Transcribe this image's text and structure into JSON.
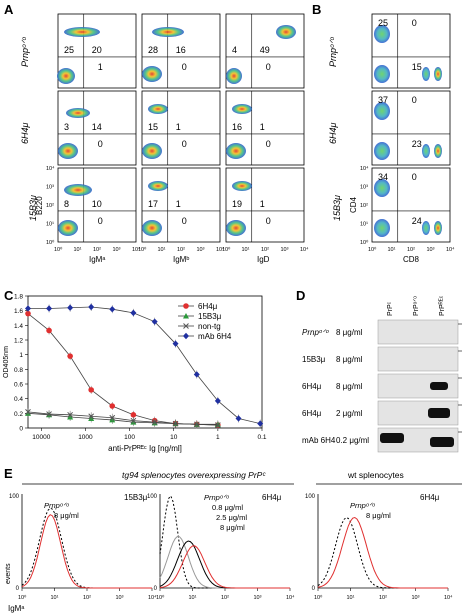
{
  "panel_labels": [
    "A",
    "B",
    "C",
    "D",
    "E"
  ],
  "row_labels": [
    "Prnpᵒᐟᵒ",
    "6H4μ",
    "15B3μ"
  ],
  "panel_a": {
    "ylabel": "B220",
    "xlabels": [
      "IgMᵃ",
      "IgMᵇ",
      "IgD"
    ],
    "quadrants": [
      [
        [
          25,
          20,
          1
        ],
        [
          28,
          16,
          0
        ],
        [
          4,
          49,
          0
        ]
      ],
      [
        [
          3,
          14,
          0
        ],
        [
          15,
          1,
          0
        ],
        [
          16,
          1,
          0
        ]
      ],
      [
        [
          8,
          10,
          0
        ],
        [
          17,
          1,
          0
        ],
        [
          19,
          1,
          0
        ]
      ]
    ]
  },
  "panel_b": {
    "ylabel": "CD4",
    "xlabel": "CD8",
    "quadrants": [
      [
        25,
        0,
        15
      ],
      [
        37,
        0,
        23
      ],
      [
        34,
        0,
        24
      ]
    ]
  },
  "axis_ticks": [
    "10⁰",
    "10¹",
    "10²",
    "10³",
    "10⁴"
  ],
  "chart_data": {
    "type": "line",
    "ylabel": "OD405nm",
    "xlabel": "anti-PrPᴿᴱᶜ Ig [ng/ml]",
    "x_ticks": [
      "10000",
      "1000",
      "100",
      "10",
      "1",
      "0.1"
    ],
    "y_ticks": [
      "0",
      "0.2",
      "0.4",
      "0.6",
      "0.8",
      "1",
      "1.2",
      "1.4",
      "1.6",
      "1.8"
    ],
    "ylim": [
      0,
      1.8
    ],
    "x_log_range": [
      20000,
      0.1
    ],
    "series": [
      {
        "name": "6H4μ",
        "color": "#e03030",
        "marker": "circle",
        "x": [
          20000,
          6667,
          2222,
          741,
          247,
          82,
          27,
          9.1,
          3.0,
          1.0
        ],
        "y": [
          1.56,
          1.33,
          0.98,
          0.52,
          0.3,
          0.18,
          0.1,
          0.06,
          0.05,
          0.04
        ]
      },
      {
        "name": "15B3μ",
        "color": "#2a9a3a",
        "marker": "triangle",
        "x": [
          20000,
          6667,
          2222,
          741,
          247,
          82,
          27,
          9.1,
          3.0,
          1.0
        ],
        "y": [
          0.2,
          0.18,
          0.15,
          0.13,
          0.11,
          0.08,
          0.07,
          0.06,
          0.05,
          0.05
        ]
      },
      {
        "name": "non-tg",
        "color": "#555555",
        "marker": "x",
        "x": [
          20000,
          6667,
          2222,
          741,
          247,
          82,
          27,
          9.1,
          3.0,
          1.0
        ],
        "y": [
          0.22,
          0.19,
          0.18,
          0.16,
          0.14,
          0.1,
          0.08,
          0.06,
          0.05,
          0.04
        ]
      },
      {
        "name": "mAb 6H4",
        "color": "#2030a0",
        "marker": "diamond",
        "x": [
          20000,
          6667,
          2222,
          741,
          247,
          82,
          27,
          9.1,
          3.0,
          1.0,
          0.34,
          0.11
        ],
        "y": [
          1.63,
          1.63,
          1.64,
          1.65,
          1.62,
          1.57,
          1.45,
          1.15,
          0.73,
          0.37,
          0.13,
          0.06
        ]
      }
    ]
  },
  "panel_d": {
    "columns": [
      "PrPᶜ",
      "PrPᵒᐟᵒ",
      "PrPᴿᴱᶜ"
    ],
    "rows": [
      {
        "label": "Prnpᵒᐟᵒ",
        "conc": "8 μg/ml"
      },
      {
        "label": "15B3μ",
        "conc": "8 μg/ml"
      },
      {
        "label": "6H4μ",
        "conc": "8 μg/ml"
      },
      {
        "label": "6H4μ",
        "conc": "2 μg/ml"
      },
      {
        "label": "mAb 6H4",
        "conc": "0.2 μg/ml"
      }
    ]
  },
  "panel_e": {
    "title_left": "tg94 splenocytes overexpressing PrPᶜ",
    "title_right": "wt splenocytes",
    "ylabel": "events",
    "xlabel": "IgMᵃ",
    "y_ticks": [
      "0",
      "100"
    ],
    "x_ticks": [
      "10⁰",
      "10¹",
      "10²",
      "10³",
      "10⁴"
    ],
    "subpanels": [
      {
        "tag": "15B3μ",
        "labels": [
          "Prnpᵒᐟᵒ",
          "8 μg/ml"
        ]
      },
      {
        "tag": "6H4μ",
        "labels": [
          "Prnpᵒᐟᵒ",
          "0.8 μg/ml",
          "2.5 μg/ml",
          "8 μg/ml"
        ]
      },
      {
        "tag": "6H4μ",
        "labels": [
          "Prnpᵒᐟᵒ",
          "8 μg/ml"
        ]
      }
    ]
  },
  "colors": {
    "red": "#e03030",
    "green": "#2a9a3a",
    "blue": "#2030a0",
    "gray": "#555555",
    "black": "#000000"
  }
}
